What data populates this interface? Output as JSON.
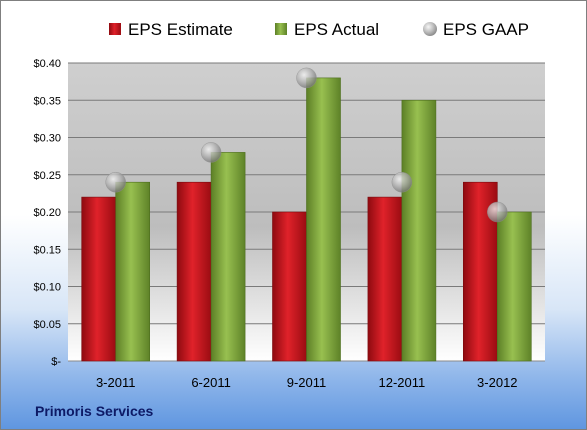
{
  "chart_data": {
    "type": "bar",
    "categories": [
      "3-2011",
      "6-2011",
      "9-2011",
      "12-2011",
      "3-2012"
    ],
    "series": [
      {
        "name": "EPS Estimate",
        "type": "bar",
        "values": [
          0.22,
          0.24,
          0.2,
          0.22,
          0.24
        ],
        "color": "#c8141c"
      },
      {
        "name": "EPS Actual",
        "type": "bar",
        "values": [
          0.24,
          0.28,
          0.38,
          0.35,
          0.2
        ],
        "color": "#7fa83c"
      },
      {
        "name": "EPS GAAP",
        "type": "scatter",
        "values": [
          0.24,
          0.28,
          0.38,
          0.24,
          0.2
        ],
        "color": "#a9a9a9"
      }
    ],
    "y_ticks": [
      "$-",
      "$0.05",
      "$0.10",
      "$0.15",
      "$0.20",
      "$0.25",
      "$0.30",
      "$0.35",
      "$0.40"
    ],
    "ylim": [
      0,
      0.4
    ],
    "grid": true,
    "legend": "top"
  },
  "footer": {
    "company": "Primoris Services"
  }
}
